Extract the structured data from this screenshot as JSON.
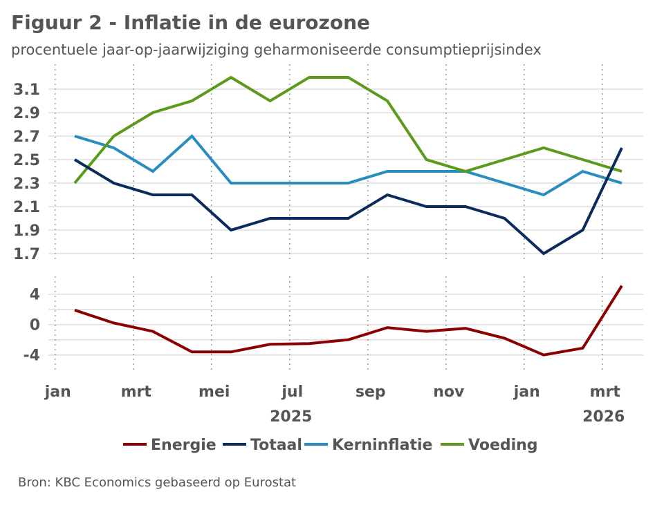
{
  "title": "Figuur 2 - Inflatie in de eurozone",
  "subtitle": "procentuele jaar-op-jaarwijziging geharmoniseerde consumptieprijsindex",
  "source": "Bron: KBC Economics gebaseerd op Eurostat",
  "chart_data": {
    "type": "line",
    "x": [
      "2025-01",
      "2025-02",
      "2025-03",
      "2025-04",
      "2025-05",
      "2025-06",
      "2025-07",
      "2025-08",
      "2025-09",
      "2025-10",
      "2025-11",
      "2025-12",
      "2026-01",
      "2026-02",
      "2026-03"
    ],
    "x_tick_labels": [
      "jan",
      "mrt",
      "mei",
      "jul",
      "sep",
      "nov",
      "jan",
      "mrt"
    ],
    "year_labels": [
      "2025",
      "2026"
    ],
    "grid": true,
    "legend_placement": "bottom",
    "panels": [
      {
        "yticks": [
          "3.1",
          "2.9",
          "2.7",
          "2.5",
          "2.3",
          "2.1",
          "1.9",
          "1.7"
        ],
        "ylim": [
          1.7,
          3.3
        ],
        "series": [
          {
            "name": "Totaal",
            "color": "#0b2b5c",
            "values": [
              2.5,
              2.3,
              2.2,
              2.2,
              1.9,
              2.0,
              2.0,
              2.0,
              2.2,
              2.1,
              2.1,
              2.0,
              1.7,
              1.9,
              2.6
            ]
          },
          {
            "name": "Kerninflatie",
            "color": "#2a8dbf",
            "values": [
              2.7,
              2.6,
              2.4,
              2.7,
              2.3,
              2.3,
              2.3,
              2.3,
              2.4,
              2.4,
              2.4,
              2.3,
              2.2,
              2.4,
              2.3
            ]
          },
          {
            "name": "Voeding",
            "color": "#5c9a1b",
            "values": [
              2.3,
              2.7,
              2.9,
              3.0,
              3.2,
              3.0,
              3.2,
              3.2,
              3.0,
              2.5,
              2.4,
              2.5,
              2.6,
              2.5,
              2.4
            ]
          }
        ]
      },
      {
        "yticks": [
          "4",
          "0",
          "-4"
        ],
        "ylim": [
          -6,
          6
        ],
        "series": [
          {
            "name": "Energie",
            "color": "#8b0000",
            "values": [
              1.9,
              0.2,
              -0.9,
              -3.6,
              -3.6,
              -2.6,
              -2.5,
              -2.0,
              -0.4,
              -0.9,
              -0.5,
              -1.8,
              -4.0,
              -3.1,
              5.1
            ]
          }
        ]
      }
    ],
    "legend": [
      "Energie",
      "Totaal",
      "Kerninflatie",
      "Voeding"
    ]
  }
}
